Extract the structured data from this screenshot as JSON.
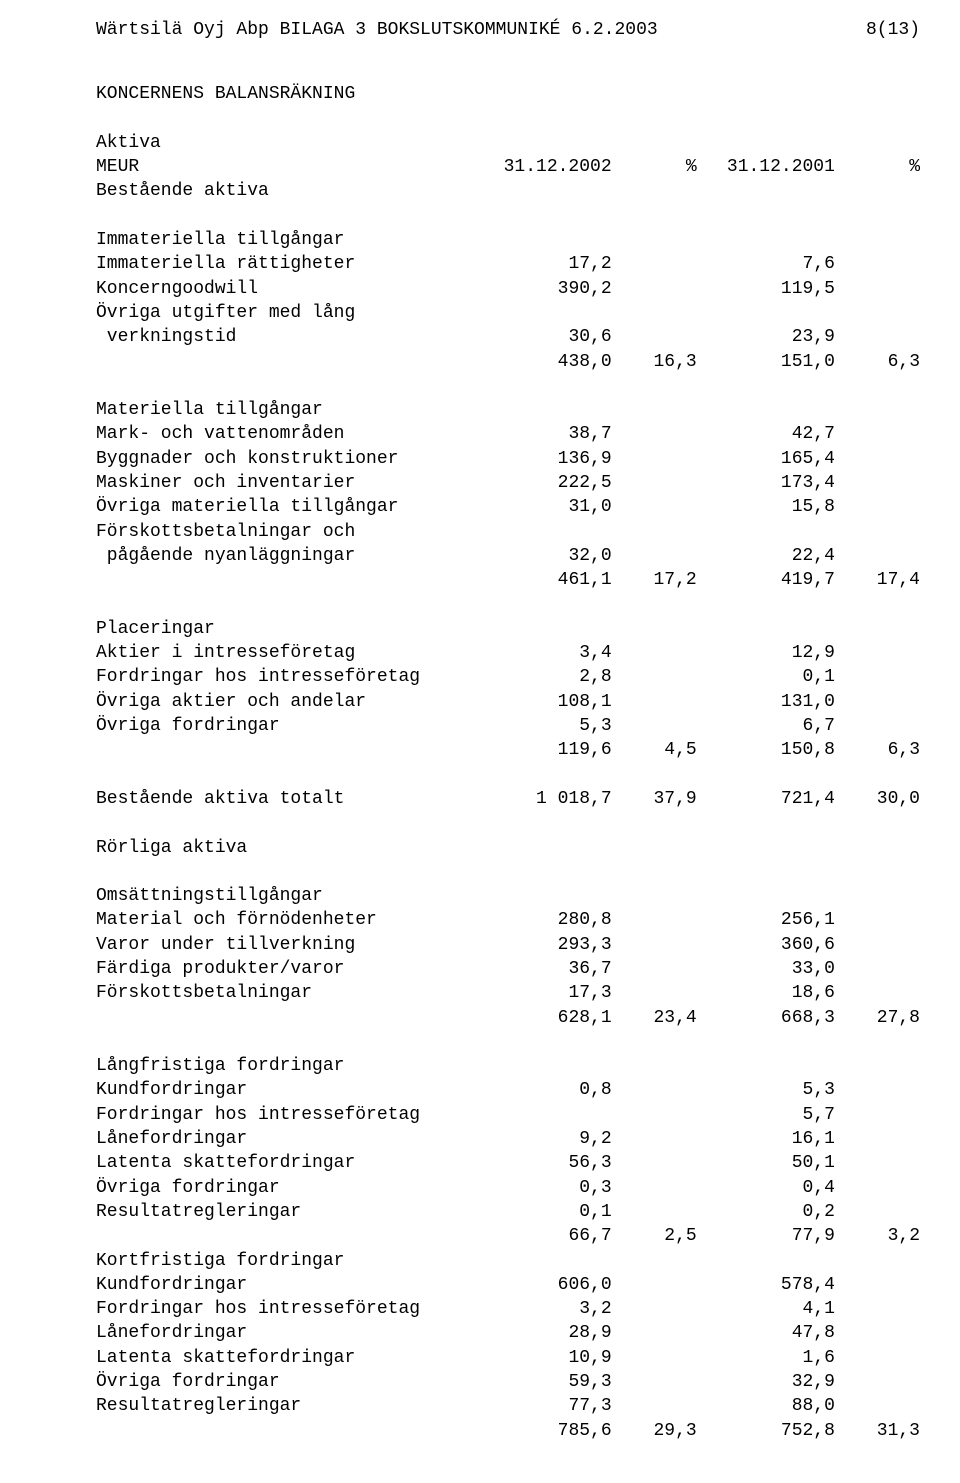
{
  "header": {
    "left": "Wärtsilä Oyj Abp BILAGA 3 BOKSLUTSKOMMUNIKÉ 6.2.2003",
    "right": "8(13)"
  },
  "title": "KONCERNENS BALANSRÄKNING",
  "columns": {
    "c1_head": "31.12.2002",
    "c2_head": "%",
    "c3_head": "31.12.2001",
    "c4_head": "%"
  },
  "labels": {
    "aktiva": "Aktiva",
    "meur": "MEUR",
    "bestaende": "Bestående aktiva",
    "rorliga": "Rörliga aktiva"
  },
  "sections": [
    {
      "heading": "Immateriella tillgångar",
      "rows": [
        {
          "label": "Immateriella rättigheter",
          "c1": "17,2",
          "c3": "7,6"
        },
        {
          "label": "Koncerngoodwill",
          "c1": "390,2",
          "c3": "119,5"
        },
        {
          "label": "Övriga utgifter med lång",
          "c1": "",
          "c3": ""
        },
        {
          "label": " verkningstid",
          "c1": "30,6",
          "c3": "23,9"
        },
        {
          "label": "",
          "c1": "438,0",
          "c2": "16,3",
          "c3": "151,0",
          "c4": "6,3"
        }
      ]
    },
    {
      "heading": "Materiella tillgångar",
      "rows": [
        {
          "label": "Mark- och vattenområden",
          "c1": "38,7",
          "c3": "42,7"
        },
        {
          "label": "Byggnader och konstruktioner",
          "c1": "136,9",
          "c3": "165,4"
        },
        {
          "label": "Maskiner och inventarier",
          "c1": "222,5",
          "c3": "173,4"
        },
        {
          "label": "Övriga materiella tillgångar",
          "c1": "31,0",
          "c3": "15,8"
        },
        {
          "label": "Förskottsbetalningar och",
          "c1": "",
          "c3": ""
        },
        {
          "label": " pågående nyanläggningar",
          "c1": "32,0",
          "c3": "22,4"
        },
        {
          "label": "",
          "c1": "461,1",
          "c2": "17,2",
          "c3": "419,7",
          "c4": "17,4"
        }
      ]
    },
    {
      "heading": "Placeringar",
      "rows": [
        {
          "label": "Aktier i intresseföretag",
          "c1": "3,4",
          "c3": "12,9"
        },
        {
          "label": "Fordringar hos intresseföretag",
          "c1": "2,8",
          "c3": "0,1"
        },
        {
          "label": "Övriga aktier och andelar",
          "c1": "108,1",
          "c3": "131,0"
        },
        {
          "label": "Övriga fordringar",
          "c1": "5,3",
          "c3": "6,7"
        },
        {
          "label": "",
          "c1": "119,6",
          "c2": "4,5",
          "c3": "150,8",
          "c4": "6,3"
        }
      ]
    }
  ],
  "bestaende_total": {
    "label": "Bestående aktiva totalt",
    "c1": "1 018,7",
    "c2": "37,9",
    "c3": "721,4",
    "c4": "30,0"
  },
  "sections2": [
    {
      "heading": "Omsättningstillgångar",
      "rows": [
        {
          "label": "Material och förnödenheter",
          "c1": "280,8",
          "c3": "256,1"
        },
        {
          "label": "Varor under tillverkning",
          "c1": "293,3",
          "c3": "360,6"
        },
        {
          "label": "Färdiga produkter/varor",
          "c1": "36,7",
          "c3": "33,0"
        },
        {
          "label": "Förskottsbetalningar",
          "c1": "17,3",
          "c3": "18,6"
        },
        {
          "label": "",
          "c1": "628,1",
          "c2": "23,4",
          "c3": "668,3",
          "c4": "27,8"
        }
      ]
    },
    {
      "heading": "Långfristiga fordringar",
      "rows": [
        {
          "label": "Kundfordringar",
          "c1": "0,8",
          "c3": "5,3"
        },
        {
          "label": "Fordringar hos intresseföretag",
          "c1": "",
          "c3": "5,7"
        },
        {
          "label": "Lånefordringar",
          "c1": "9,2",
          "c3": "16,1"
        },
        {
          "label": "Latenta skattefordringar",
          "c1": "56,3",
          "c3": "50,1"
        },
        {
          "label": "Övriga fordringar",
          "c1": "0,3",
          "c3": "0,4"
        },
        {
          "label": "Resultatregleringar",
          "c1": "0,1",
          "c3": "0,2"
        },
        {
          "label": "",
          "c1": "66,7",
          "c2": "2,5",
          "c3": "77,9",
          "c4": "3,2"
        }
      ]
    },
    {
      "heading": "Kortfristiga fordringar",
      "rows": [
        {
          "label": "Kundfordringar",
          "c1": "606,0",
          "c3": "578,4"
        },
        {
          "label": "Fordringar hos intresseföretag",
          "c1": "3,2",
          "c3": "4,1"
        },
        {
          "label": "Lånefordringar",
          "c1": "28,9",
          "c3": "47,8"
        },
        {
          "label": "Latenta skattefordringar",
          "c1": "10,9",
          "c3": "1,6"
        },
        {
          "label": "Övriga fordringar",
          "c1": "59,3",
          "c3": "32,9"
        },
        {
          "label": "Resultatregleringar",
          "c1": "77,3",
          "c3": "88,0"
        },
        {
          "label": "",
          "c1": "785,6",
          "c2": "29,3",
          "c3": "752,8",
          "c4": "31,3"
        }
      ]
    }
  ]
}
